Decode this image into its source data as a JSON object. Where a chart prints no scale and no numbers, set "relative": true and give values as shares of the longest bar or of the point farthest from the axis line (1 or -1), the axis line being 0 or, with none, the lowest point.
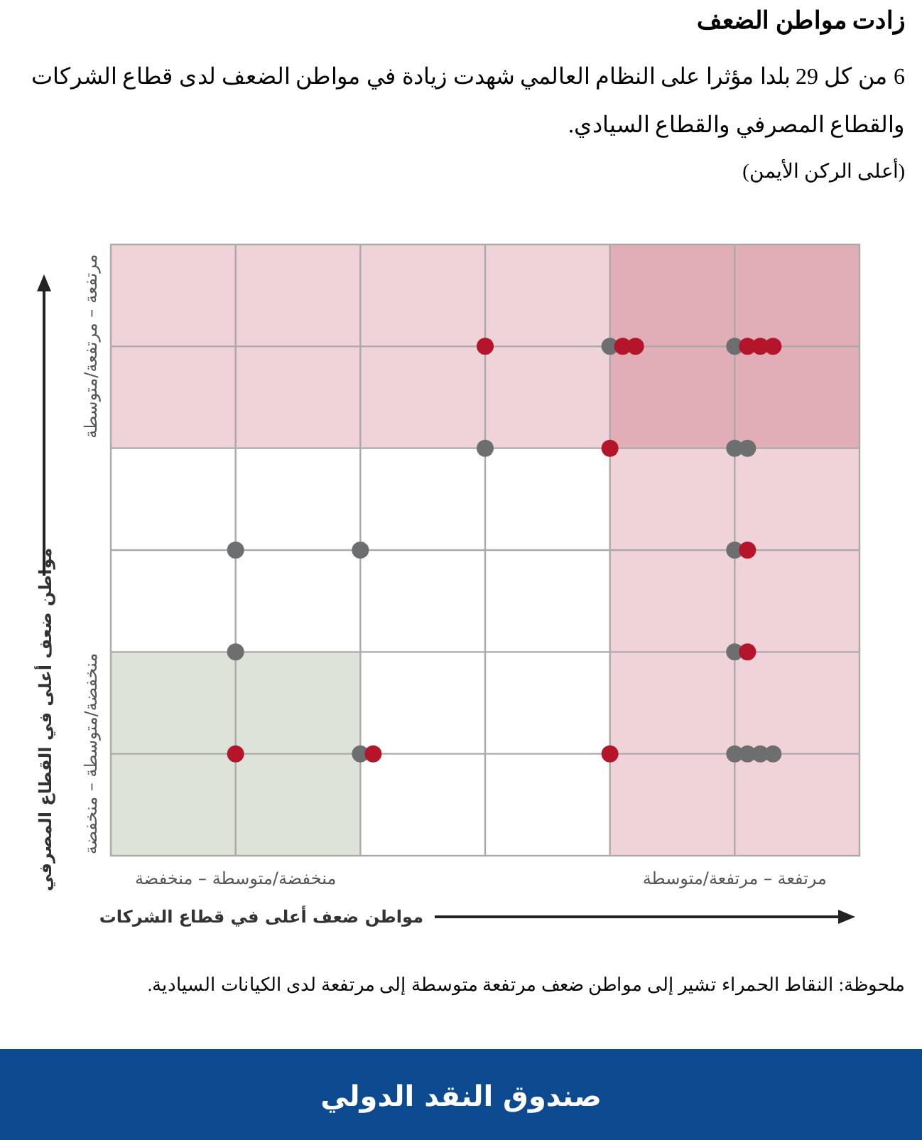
{
  "chart_data": {
    "type": "scatter",
    "title": "زادت مواطن الضعف",
    "subtitle": "6 من كل 29 بلدا مؤثرا على النظام العالمي شهدت زيادة في مواطن الضعف لدى قطاع الشركات والقطاع المصرفي والقطاع السيادي.",
    "xlabel": "مواطن ضعف أعلى في قطاع الشركات",
    "ylabel": "مواطن ضعف أعلى في القطاع المصرفي",
    "annotations": [
      "(أعلى الركن الأيمن)",
      "ملحوظة: النقاط الحمراء تشير إلى مواطن ضعف مرتفعة متوسطة إلى مرتفعة لدى الكيانات السيادية.",
      "صندوق النقد الدولي",
      "منخفضة/متوسطة – منخفضة",
      "مرتفعة – مرتفعة/متوسطة"
    ],
    "categories": [
      "منخفضة/متوسطة – منخفضة",
      null,
      null,
      null,
      "مرتفعة – مرتفعة/متوسطة"
    ],
    "relative": true,
    "grid": true,
    "marker": "circle",
    "series": [
      {
        "values": [
          0.6,
          0.6,
          1.0,
          1.0,
          1.0
        ],
        "colors": [
          "#6d6e70",
          "#6d6e70",
          "#b5152b",
          "#6d6e70",
          "#6d6e70"
        ]
      },
      {
        "values": [
          0.4,
          0.2,
          0.8,
          1.0,
          1.0
        ],
        "colors": [
          "#6d6e70",
          "#6d6e70",
          "#6d6e70",
          "#b5152b",
          "#b5152b"
        ]
      },
      {
        "values": [
          0.2,
          0.2,
          null,
          1.0,
          1.0
        ],
        "colors": [
          "#b5152b",
          "#b5152b",
          null,
          "#b5152b",
          "#b5152b"
        ]
      },
      {
        "values": [
          null,
          null,
          null,
          0.8,
          1.0
        ],
        "colors": [
          null,
          null,
          null,
          "#b5152b",
          "#b5152b"
        ]
      },
      {
        "values": [
          null,
          null,
          null,
          0.2,
          0.8
        ],
        "colors": [
          null,
          null,
          null,
          "#b5152b",
          "#6d6e70"
        ]
      },
      {
        "values": [
          null,
          null,
          null,
          null,
          0.8
        ],
        "colors": [
          null,
          null,
          null,
          null,
          "#6d6e70"
        ]
      },
      {
        "values": [
          null,
          null,
          null,
          null,
          0.6
        ],
        "colors": [
          null,
          null,
          null,
          null,
          "#6d6e70"
        ]
      },
      {
        "values": [
          null,
          null,
          null,
          null,
          0.6
        ],
        "colors": [
          null,
          null,
          null,
          null,
          "#b5152b"
        ]
      },
      {
        "values": [
          null,
          null,
          null,
          null,
          0.4
        ],
        "colors": [
          null,
          null,
          null,
          null,
          "#6d6e70"
        ]
      },
      {
        "values": [
          null,
          null,
          null,
          null,
          0.4
        ],
        "colors": [
          null,
          null,
          null,
          null,
          "#b5152b"
        ]
      },
      {
        "values": [
          null,
          null,
          null,
          null,
          0.2
        ],
        "colors": [
          null,
          null,
          null,
          null,
          "#6d6e70"
        ]
      },
      {
        "values": [
          null,
          null,
          null,
          null,
          0.2
        ],
        "colors": [
          null,
          null,
          null,
          null,
          "#6d6e70"
        ]
      },
      {
        "values": [
          null,
          null,
          null,
          null,
          0.2
        ],
        "colors": [
          null,
          null,
          null,
          null,
          "#6d6e70"
        ]
      },
      {
        "values": [
          null,
          null,
          null,
          null,
          0.2
        ],
        "colors": [
          null,
          null,
          null,
          null,
          "#6d6e70"
        ]
      }
    ]
  }
}
